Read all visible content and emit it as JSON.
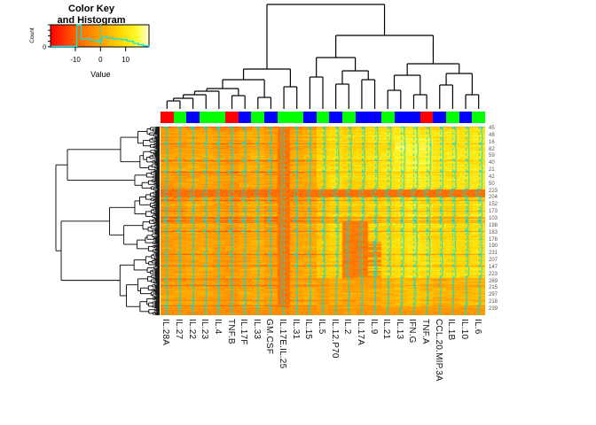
{
  "color_key": {
    "title_line1": "Color Key",
    "title_line2": "and Histogram",
    "x_ticks": [
      "-10",
      "0",
      "10"
    ],
    "x_label": "Value",
    "y_label": "Count",
    "y_tick_label": "0"
  },
  "heatmap": {
    "columns": [
      "IL.28A",
      "IL.27",
      "IL.22",
      "IL.23",
      "IL.4",
      "TNF.B",
      "IL.17F",
      "IL.33",
      "GM.CSF",
      "IL.17E.IL.25",
      "IL.31",
      "IL.15",
      "IL.5",
      "IL.12.P70",
      "IL.2",
      "IL.17A",
      "IL.9",
      "IL.21",
      "IL.13",
      "IFN.G",
      "TNF.A",
      "CCL.20.MIP.3A",
      "IL.1B",
      "IL.10",
      "IL.6"
    ],
    "row_tick_labels": [
      "45",
      "48",
      "16",
      "82",
      "59",
      "40",
      "21",
      "42",
      "50",
      "223",
      "204",
      "152",
      "173",
      "103",
      "198",
      "183",
      "178",
      "190",
      "231",
      "207",
      "147",
      "223",
      "269",
      "215",
      "297",
      "218",
      "239"
    ],
    "col_side_colors": [
      "red",
      "green",
      "blue",
      "green",
      "green",
      "red",
      "blue",
      "green",
      "blue",
      "green",
      "green",
      "blue",
      "green",
      "blue",
      "green",
      "blue",
      "blue",
      "green",
      "blue",
      "blue",
      "red",
      "blue",
      "green",
      "blue",
      "green"
    ],
    "class_color_hex": {
      "red": "#FF0000",
      "green": "#00FF00",
      "blue": "#0000FF"
    },
    "trace_color": "#00DCDC",
    "dash_color": "#00E8E8",
    "dendrogram_color": "#000000"
  },
  "chart_data": {
    "type": "heatmap",
    "title": "Color Key and Histogram",
    "columns": [
      "IL.28A",
      "IL.27",
      "IL.22",
      "IL.23",
      "IL.4",
      "TNF.B",
      "IL.17F",
      "IL.33",
      "GM.CSF",
      "IL.17E.IL.25",
      "IL.31",
      "IL.15",
      "IL.5",
      "IL.12.P70",
      "IL.2",
      "IL.17A",
      "IL.9",
      "IL.21",
      "IL.13",
      "IFN.G",
      "TNF.A",
      "CCL.20.MIP.3A",
      "IL.1B",
      "IL.10",
      "IL.6"
    ],
    "row_tick_labels": [
      "45",
      "48",
      "16",
      "82",
      "59",
      "40",
      "21",
      "42",
      "50",
      "223",
      "204",
      "152",
      "173",
      "103",
      "198",
      "183",
      "178",
      "190",
      "231",
      "207",
      "147",
      "223",
      "269",
      "215",
      "297",
      "218",
      "239"
    ],
    "col_side_colors": [
      "red",
      "green",
      "blue",
      "green",
      "green",
      "red",
      "blue",
      "green",
      "blue",
      "green",
      "green",
      "blue",
      "green",
      "blue",
      "green",
      "blue",
      "blue",
      "green",
      "blue",
      "blue",
      "red",
      "blue",
      "green",
      "blue",
      "green"
    ],
    "value_range": [
      -20,
      19.5
    ],
    "key_axis_ticks": [
      -10,
      0,
      10
    ],
    "color_scale_stops": [
      [
        0,
        "#FF0000"
      ],
      [
        0.28,
        "#FF6A00"
      ],
      [
        0.5,
        "#FF9E00"
      ],
      [
        0.72,
        "#FFD900"
      ],
      [
        0.88,
        "#FFFA30"
      ],
      [
        1,
        "#FFFFD8"
      ]
    ],
    "col_mean_values": [
      0,
      0,
      1,
      1,
      0,
      -1,
      1,
      2,
      0,
      -7,
      1,
      2,
      6,
      8,
      7,
      7,
      8,
      9,
      10,
      11,
      10,
      9,
      9,
      9,
      10
    ],
    "histogram_steps": [
      [
        -20,
        -9.5,
        0.03
      ],
      [
        -9.5,
        -7.8,
        1.0
      ],
      [
        -7.8,
        -4,
        0.34
      ],
      [
        -4,
        -1,
        0.3
      ],
      [
        -1,
        0.5,
        0.24
      ],
      [
        0.5,
        2.5,
        0.46
      ],
      [
        2.5,
        5,
        0.4
      ],
      [
        5,
        8,
        0.36
      ],
      [
        8,
        10.5,
        0.33
      ],
      [
        10.5,
        13,
        0.26
      ],
      [
        13,
        15,
        0.16
      ],
      [
        15,
        17,
        0.1
      ],
      [
        17,
        19,
        0.05
      ]
    ],
    "col_dendrogram": {
      "h": 3,
      "c": [
        {
          "h": 76,
          "c": [
            {
              "h": 88,
              "c": [
                {
                  "h": 98,
                  "c": [
                    {
                      "h": 101,
                      "c": [
                        {
                          "h": 105,
                          "c": [
                            {
                              "h": 109,
                              "c": [
                                {
                                  "h": 112,
                                  "c": [
                                    1,
                                    2
                                  ]
                                },
                                3
                              ]
                            },
                            4
                          ]
                        },
                        5
                      ]
                    },
                    {
                      "h": 106,
                      "c": [
                        6,
                        7
                      ]
                    }
                  ]
                },
                {
                  "h": 108,
                  "c": [
                    8,
                    9
                  ]
                }
              ]
            },
            {
              "h": 96,
              "c": [
                10,
                11
              ]
            }
          ]
        },
        {
          "h": 38,
          "c": [
            {
              "h": 63,
              "c": [
                {
                  "h": 85,
                  "c": [
                    12,
                    13
                  ]
                },
                {
                  "h": 78,
                  "c": [
                    {
                      "h": 93,
                      "c": [
                        14,
                        15
                      ]
                    },
                    {
                      "h": 88,
                      "c": [
                        16,
                        17
                      ]
                    }
                  ]
                }
              ]
            },
            {
              "h": 70,
              "c": [
                {
                  "h": 83,
                  "c": [
                    {
                      "h": 100,
                      "c": [
                        18,
                        19
                      ]
                    },
                    {
                      "h": 105,
                      "c": [
                        20,
                        21
                      ]
                    }
                  ]
                },
                {
                  "h": 81,
                  "c": [
                    {
                      "h": 94,
                      "c": [
                        22,
                        23
                      ]
                    },
                    {
                      "h": 105,
                      "c": [
                        24,
                        25
                      ]
                    }
                  ]
                }
              ]
            }
          ]
        }
      ]
    }
  }
}
